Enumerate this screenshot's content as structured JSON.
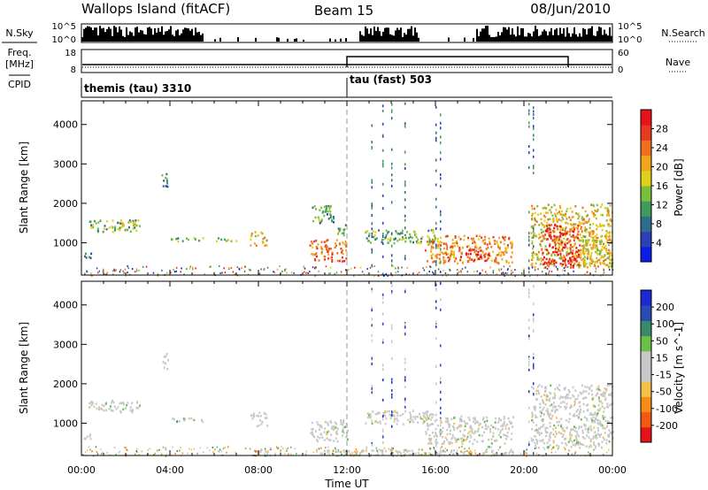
{
  "header": {
    "station": "Wallops Island (fitACF)",
    "beam": "Beam 15",
    "date": "08/Jun/2010"
  },
  "strip_labels": {
    "nsky": "N.Sky",
    "freq_line1": "Freq.",
    "freq_line2": "[MHz]",
    "cpid": "CPID",
    "nsearch": "N.Search",
    "nave": "Nave"
  },
  "strip_ticks": {
    "nsky_top": "10^5",
    "nsky_bottom": "10^0",
    "freq_top": "18",
    "freq_bottom": "8",
    "nave_top": "60",
    "nave_bottom": "0"
  },
  "cpid_modes": [
    {
      "label": "themis (tau) 3310",
      "start_hour": 0
    },
    {
      "label": "tau (fast) 503",
      "start_hour": 12
    }
  ],
  "colors": {
    "power_scale": [
      "#0a1ee6",
      "#2a40b4",
      "#2e6e8c",
      "#3f9a5c",
      "#79be3c",
      "#e0d018",
      "#f2a41a",
      "#f07020",
      "#e83a20",
      "#e6141a"
    ],
    "velocity_scale": [
      "#e6141a",
      "#f05a14",
      "#f58c14",
      "#f4c24c",
      "#c8c8c8",
      "#c8c8c8",
      "#6cc04a",
      "#3a8a6a",
      "#2a4ab4",
      "#1a2ad0"
    ]
  },
  "chart_data": [
    {
      "type": "heatmap",
      "name": "power",
      "xlabel": "",
      "ylabel": "Slant Range [km]",
      "xlim": [
        0,
        24
      ],
      "ylim": [
        180,
        4600
      ],
      "yticks": [
        "1000",
        "2000",
        "3000",
        "4000"
      ],
      "colorbar": {
        "label": "Power [dB]",
        "range": [
          0,
          32
        ],
        "ticks": [
          "4",
          "8",
          "12",
          "16",
          "20",
          "24",
          "28"
        ]
      },
      "echo_regions": [
        {
          "t0": 0.0,
          "t1": 0.5,
          "r0": 620,
          "r1": 780,
          "level": 0.35
        },
        {
          "t0": 0.3,
          "t1": 2.6,
          "r0": 1300,
          "r1": 1600,
          "level": 0.4
        },
        {
          "t0": 1.8,
          "t1": 2.6,
          "r0": 1450,
          "r1": 1580,
          "level": 0.6
        },
        {
          "t0": 3.6,
          "t1": 3.9,
          "r0": 2400,
          "r1": 2800,
          "level": 0.3
        },
        {
          "t0": 4.0,
          "t1": 5.5,
          "r0": 1050,
          "r1": 1150,
          "level": 0.4
        },
        {
          "t0": 6.0,
          "t1": 7.0,
          "r0": 1050,
          "r1": 1150,
          "level": 0.45
        },
        {
          "t0": 7.6,
          "t1": 8.4,
          "r0": 950,
          "r1": 1300,
          "level": 0.6
        },
        {
          "t0": 10.3,
          "t1": 12.0,
          "r0": 550,
          "r1": 1100,
          "level": 0.75
        },
        {
          "t0": 10.4,
          "t1": 11.4,
          "r0": 1500,
          "r1": 2000,
          "level": 0.35
        },
        {
          "t0": 11.5,
          "t1": 12.0,
          "r0": 1200,
          "r1": 1500,
          "level": 0.4
        },
        {
          "t0": 12.8,
          "t1": 16.0,
          "r0": 1000,
          "r1": 1350,
          "level": 0.4
        },
        {
          "t0": 15.5,
          "t1": 19.5,
          "r0": 500,
          "r1": 1200,
          "level": 0.7
        },
        {
          "t0": 17.0,
          "t1": 18.4,
          "r0": 550,
          "r1": 850,
          "level": 0.9
        },
        {
          "t0": 20.3,
          "t1": 24.0,
          "r0": 400,
          "r1": 2000,
          "level": 0.6
        },
        {
          "t0": 20.8,
          "t1": 22.5,
          "r0": 400,
          "r1": 1500,
          "level": 0.9
        },
        {
          "t0": 22.5,
          "t1": 24.0,
          "r0": 400,
          "r1": 1200,
          "level": 0.55
        }
      ]
    },
    {
      "type": "heatmap",
      "name": "velocity",
      "xlabel": "Time UT",
      "ylabel": "Slant Range [km]",
      "xlim": [
        0,
        24
      ],
      "ylim": [
        180,
        4600
      ],
      "xticks": [
        "00:00",
        "04:00",
        "08:00",
        "12:00",
        "16:00",
        "20:00",
        "00:00"
      ],
      "yticks": [
        "1000",
        "2000",
        "3000",
        "4000"
      ],
      "colorbar": {
        "label": "Velocity [m s^-1]",
        "range": [
          -250,
          250
        ],
        "ticks": [
          "-200",
          "-100",
          "-50",
          "-15",
          "15",
          "50",
          "100",
          "200"
        ]
      },
      "echo_regions": [
        {
          "t0": 0.0,
          "t1": 0.5,
          "r0": 620,
          "r1": 780,
          "level": 0.5
        },
        {
          "t0": 0.3,
          "t1": 2.6,
          "r0": 1300,
          "r1": 1600,
          "level": 0.5
        },
        {
          "t0": 3.6,
          "t1": 3.9,
          "r0": 2400,
          "r1": 2800,
          "level": 0.55
        },
        {
          "t0": 4.0,
          "t1": 5.5,
          "r0": 1050,
          "r1": 1150,
          "level": 0.6
        },
        {
          "t0": 7.6,
          "t1": 8.4,
          "r0": 950,
          "r1": 1300,
          "level": 0.5
        },
        {
          "t0": 10.3,
          "t1": 12.0,
          "r0": 550,
          "r1": 1100,
          "level": 0.5
        },
        {
          "t0": 12.8,
          "t1": 16.0,
          "r0": 1000,
          "r1": 1350,
          "level": 0.5
        },
        {
          "t0": 15.5,
          "t1": 19.5,
          "r0": 500,
          "r1": 1200,
          "level": 0.5
        },
        {
          "t0": 20.3,
          "t1": 24.0,
          "r0": 400,
          "r1": 2000,
          "level": 0.5
        },
        {
          "t0": 7.8,
          "t1": 8.6,
          "r0": 200,
          "r1": 400,
          "level": 0.2
        },
        {
          "t0": 10.5,
          "t1": 19.5,
          "r0": 200,
          "r1": 350,
          "level": 0.35
        }
      ]
    }
  ]
}
